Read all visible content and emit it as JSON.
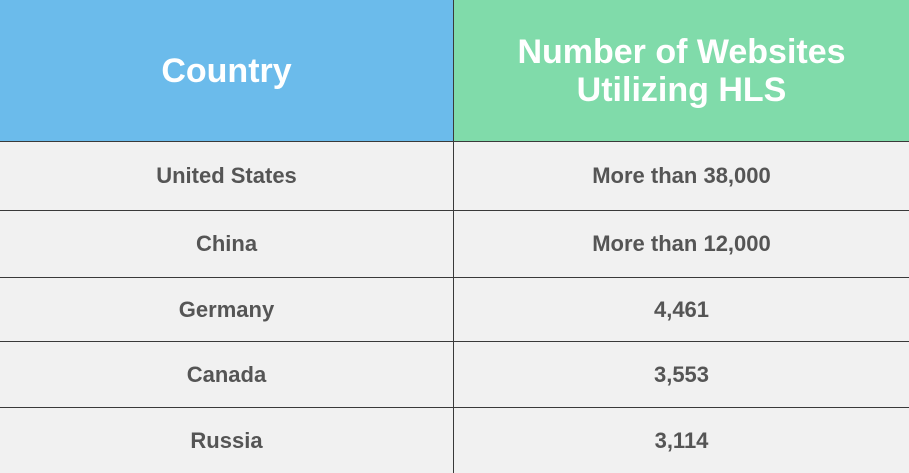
{
  "table": {
    "header": [
      "Country",
      "Number of Websites Utilizing HLS"
    ],
    "rows": [
      [
        "United States",
        "More than 38,000"
      ],
      [
        "China",
        "More than 12,000"
      ],
      [
        "Germany",
        "4,461"
      ],
      [
        "Canada",
        "3,553"
      ],
      [
        "Russia",
        "3,114"
      ]
    ]
  }
}
